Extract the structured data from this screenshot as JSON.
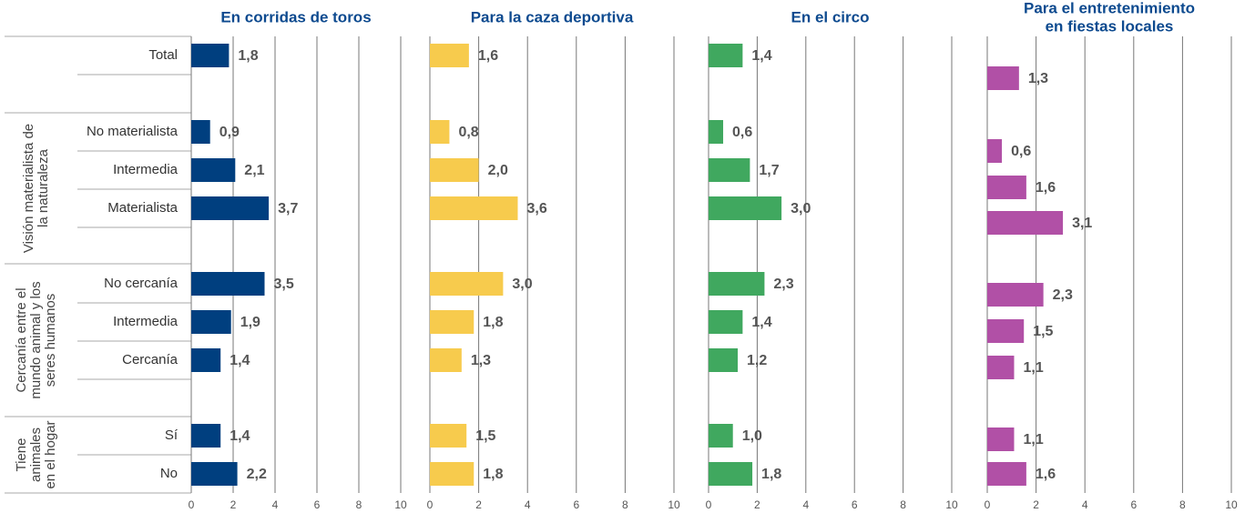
{
  "categories": [
    "Total",
    "No materialista",
    "Intermedia",
    "Materialista",
    "No cercanía",
    "Intermedia",
    "Cercanía",
    "Sí",
    "No"
  ],
  "groups": [
    [
      "Visión materialista de",
      "la naturaleza"
    ],
    [
      "Cercanía entre el",
      "mundo animal y los",
      "seres humanos"
    ],
    [
      "Tiene",
      "animales",
      "en el hogar"
    ]
  ],
  "chart_data": [
    {
      "type": "bar",
      "orientation": "horizontal",
      "title": [
        "En corridas de toros"
      ],
      "color": "#003f7f",
      "values": [
        1.8,
        0.9,
        2.1,
        3.7,
        3.5,
        1.9,
        1.4,
        1.4,
        2.2
      ],
      "value_labels": [
        "1,8",
        "0,9",
        "2,1",
        "3,7",
        "3,5",
        "1,9",
        "1,4",
        "1,4",
        "2,2"
      ],
      "xlim": [
        0,
        10
      ],
      "xticks": [
        0,
        2,
        4,
        6,
        8,
        10
      ],
      "grid": true
    },
    {
      "type": "bar",
      "orientation": "horizontal",
      "title": [
        "Para la caza deportiva"
      ],
      "color": "#f7cb4d",
      "values": [
        1.6,
        0.8,
        2.0,
        3.6,
        3.0,
        1.8,
        1.3,
        1.5,
        1.8
      ],
      "value_labels": [
        "1,6",
        "0,8",
        "2,0",
        "3,6",
        "3,0",
        "1,8",
        "1,3",
        "1,5",
        "1,8"
      ],
      "xlim": [
        0,
        10
      ],
      "xticks": [
        0,
        2,
        4,
        6,
        8,
        10
      ],
      "grid": true
    },
    {
      "type": "bar",
      "orientation": "horizontal",
      "title": [
        "En el circo"
      ],
      "color": "#40a85f",
      "values": [
        1.4,
        0.6,
        1.7,
        3.0,
        2.3,
        1.4,
        1.2,
        1.0,
        1.8
      ],
      "value_labels": [
        "1,4",
        "0,6",
        "1,7",
        "3,0",
        "2,3",
        "1,4",
        "1,2",
        "1,0",
        "1,8"
      ],
      "xlim": [
        0,
        10
      ],
      "xticks": [
        0,
        2,
        4,
        6,
        8,
        10
      ],
      "grid": true
    },
    {
      "type": "bar",
      "orientation": "horizontal",
      "title": [
        "Para el entretenimiento",
        "en fiestas locales"
      ],
      "color": "#b150a6",
      "values": [
        1.3,
        0.6,
        1.6,
        3.1,
        2.3,
        1.5,
        1.1,
        1.1,
        1.6
      ],
      "value_labels": [
        "1,3",
        "0,6",
        "1,6",
        "3,1",
        "2,3",
        "1,5",
        "1,1",
        "1,1",
        "1,6"
      ],
      "xlim": [
        0,
        10
      ],
      "xticks": [
        0,
        2,
        4,
        6,
        8,
        10
      ],
      "grid": true
    }
  ]
}
